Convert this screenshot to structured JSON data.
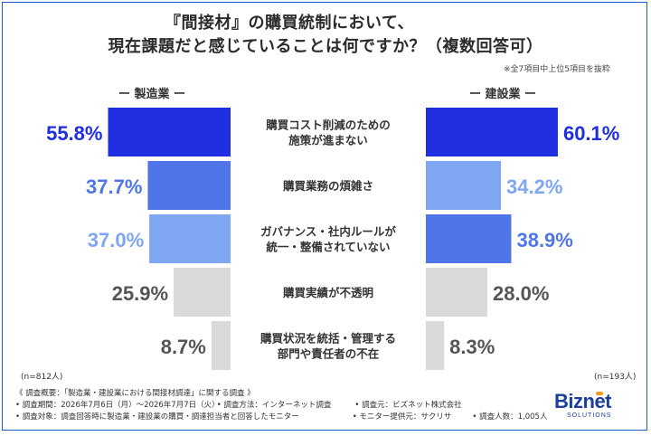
{
  "title": {
    "line1": "『間接材』の購買統制において、",
    "line2": "現在課題だと感じていることは何ですか？（複数回答可）"
  },
  "note": "※全7項目中上位5項目を抜粋",
  "chart_data": {
    "type": "bar",
    "orientation": "horizontal-butterfly",
    "categories": [
      [
        "購買コスト削減のための",
        "施策が進まない"
      ],
      [
        "購買業務の煩雑さ"
      ],
      [
        "ガバナンス・社内ルールが",
        "統一・整備されていない"
      ],
      [
        "購買実績が不透明"
      ],
      [
        "購買状況を統括・管理する",
        "部門や責任者の不在"
      ]
    ],
    "unit": "%",
    "xlim": [
      0,
      70
    ],
    "series": [
      {
        "name": "製造業",
        "values": [
          55.8,
          37.7,
          37.0,
          25.9,
          8.7
        ],
        "labels": [
          "55.8%",
          "37.7%",
          "37.0%",
          "25.9%",
          "8.7%"
        ],
        "colors": [
          "#1f2ee0",
          "#4f75e8",
          "#7fa6f2",
          "#d9d9d9",
          "#d9d9d9"
        ],
        "label_colors": [
          "#1f2ee0",
          "#4f75e8",
          "#7fa6f2",
          "#555555",
          "#555555"
        ],
        "n": "(n=812人)"
      },
      {
        "name": "建設業",
        "values": [
          60.1,
          34.2,
          38.9,
          28.0,
          8.3
        ],
        "labels": [
          "60.1%",
          "34.2%",
          "38.9%",
          "28.0%",
          "8.3%"
        ],
        "colors": [
          "#1f2ee0",
          "#7fa6f2",
          "#4f75e8",
          "#d9d9d9",
          "#d9d9d9"
        ],
        "label_colors": [
          "#1f2ee0",
          "#7fa6f2",
          "#4f75e8",
          "#555555",
          "#555555"
        ],
        "n": "(n=193人)"
      }
    ]
  },
  "headers": {
    "left": "ー 製造業 ー",
    "right": "ー 建設業 ー"
  },
  "footer": {
    "summary": "《 調査概要：「製造業・建設業における間接材調達」に関する調査 》",
    "period": "• 調査期間：2026年7月6日（月）〜2026年7月7日（火）",
    "method": "• 調査方法：インターネット調査",
    "organizer": "• 調査元：ビズネット株式会社",
    "target": "• 調査対象：調査回答時に製造業・建設業の購買・調達担当者と回答したモニター",
    "provider": "• モニター提供元：サクリサ",
    "count": "• 調査人数：1,005人"
  },
  "logo": {
    "name": "Biznet",
    "sub": "SOLUTIONS"
  }
}
